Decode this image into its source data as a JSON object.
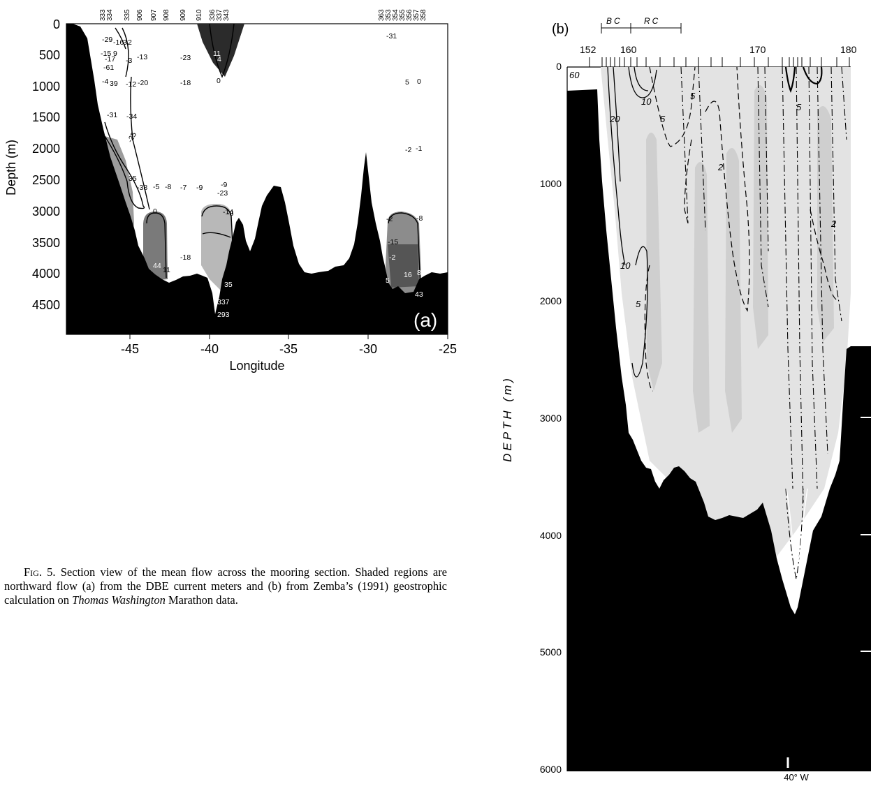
{
  "figure": {
    "caption": {
      "label": "Fig. 5.",
      "text_1": "Section view of the mean flow across the mooring section. Shaded regions are northward flow (a) from the DBE current meters and (b) from Zemba’s (1991) geostrophic calculation on",
      "italic": "Thomas Washington",
      "text_2": "Marathon data."
    },
    "panel_a": {
      "tag": "(a)",
      "ylabel": "Depth (m)",
      "xlabel": "Longitude",
      "yticks": [
        "0",
        "500",
        "1000",
        "1500",
        "2000",
        "2500",
        "3000",
        "3500",
        "4000",
        "4500"
      ],
      "xticks": [
        "-45",
        "-40",
        "-35",
        "-30",
        "-25"
      ],
      "moorings_left": [
        "333",
        "334"
      ],
      "moorings_mid": [
        "335",
        "906",
        "907",
        "908",
        "909",
        "910",
        "336",
        "337",
        "343"
      ],
      "moorings_right": [
        "363",
        "353",
        "354",
        "355",
        "356",
        "357",
        "358"
      ],
      "values": {
        "v1": "-29",
        "v2": "-16",
        "v3": "3",
        "v4": "2",
        "v5": "-15",
        "v6": "9",
        "v7": "-17",
        "v8": "-3",
        "v9": "-13",
        "v10": "-23",
        "v11": "11",
        "v12": "4",
        "v13": "-61",
        "v14": "-4",
        "v15": "39",
        "v16": "-12",
        "v17": "-20",
        "v18": "-18",
        "v19": "-31",
        "v20": "5",
        "v21": "0",
        "v22": "-31",
        "v23": "-34",
        "v24": "-25",
        "v25": "-2",
        "v26": "-1",
        "v27": "35",
        "v28": "-38",
        "v29": "-5",
        "v30": "-8",
        "v31": "-7",
        "v32": "-9",
        "v33": "-9",
        "v34": "-23",
        "v35": "0",
        "v36": "-14",
        "v37": "-8",
        "v38": "-2",
        "v39": "-8",
        "v40": "-43",
        "v41": "-15",
        "v42": "-18",
        "v43": "-2",
        "v44": "44",
        "v45": "11",
        "v46": "16",
        "v47": "8",
        "v48": "35",
        "v49": "43",
        "v50": "337",
        "v51": "293",
        "v52": "5",
        "v53": "0"
      }
    },
    "panel_b": {
      "tag": "(b)",
      "ylabel": "DEPTH (m)",
      "yticks": [
        "0",
        "1000",
        "2000",
        "3000",
        "4000",
        "5000",
        "6000"
      ],
      "stations": [
        "152",
        "160",
        "170",
        "180"
      ],
      "segments": [
        "BC",
        "RC"
      ],
      "contours": [
        "60",
        "10",
        "20",
        "5",
        "5",
        "2",
        "10",
        "5",
        "2",
        "5"
      ],
      "lon_label": "40° W"
    }
  }
}
